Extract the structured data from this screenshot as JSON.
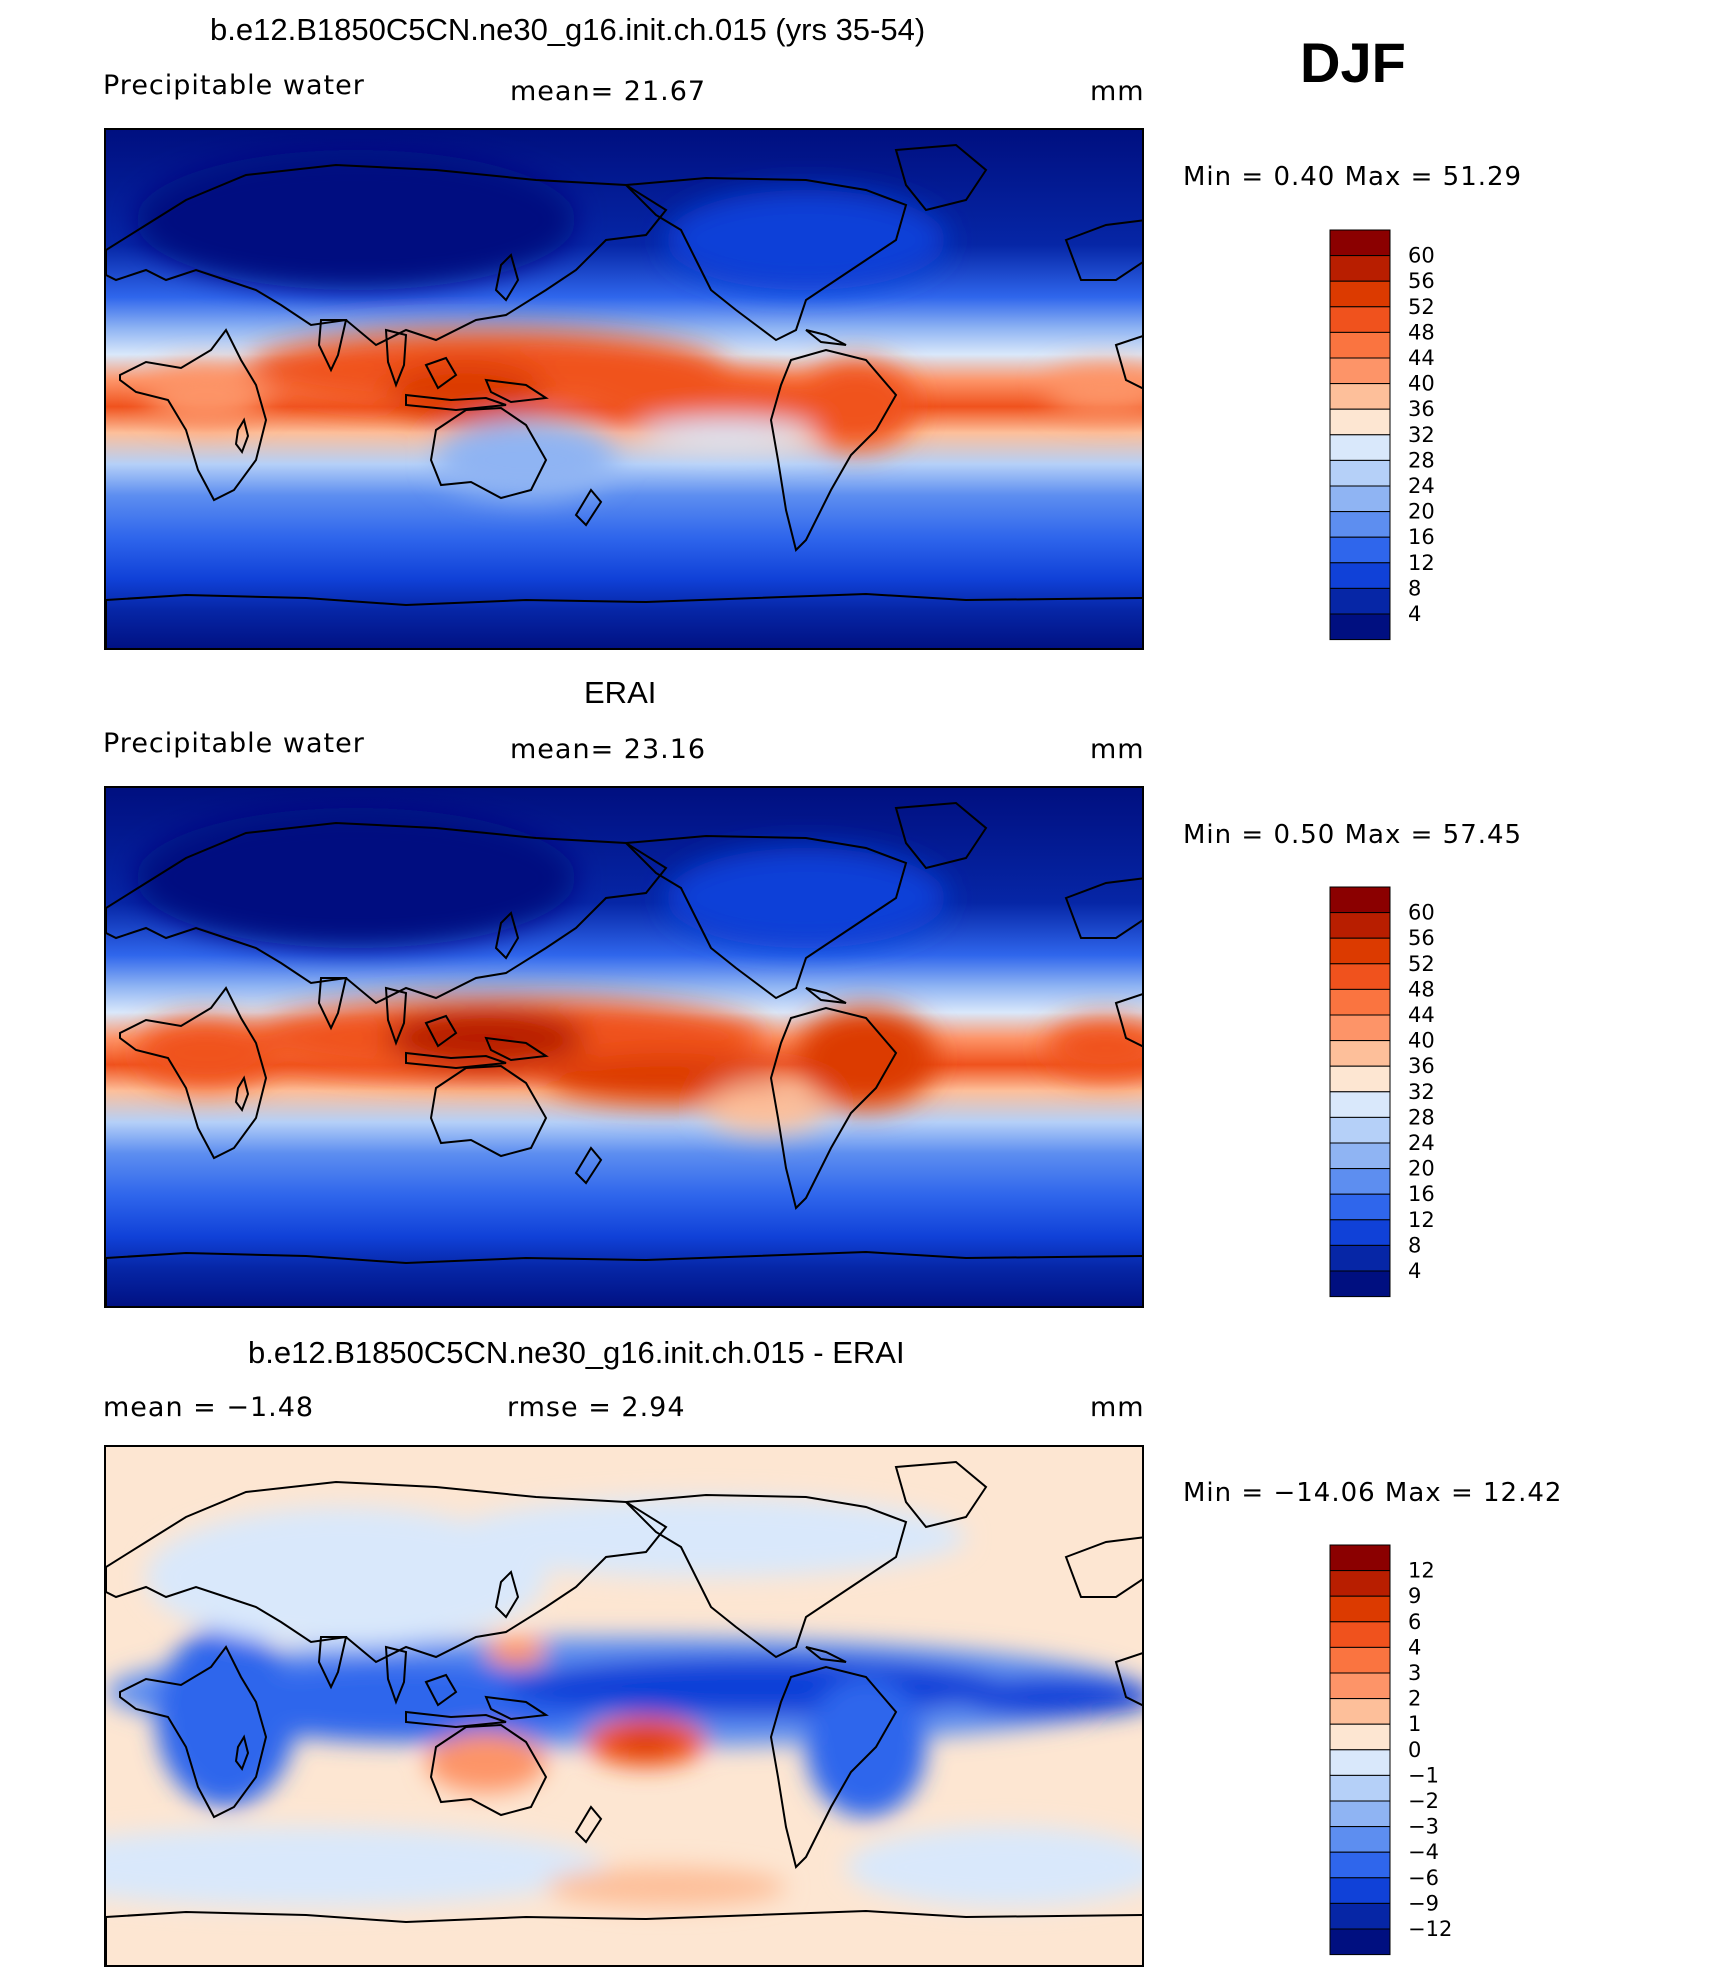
{
  "season": "DJF",
  "panels": [
    {
      "id": "model",
      "title": "b.e12.B1850C5CN.ne30_g16.init.ch.015 (yrs 35-54)",
      "variable": "Precipitable water",
      "stat_text": "mean=   21.67",
      "stat2_text": "",
      "units": "mm",
      "minmax": "Min =    0.40 Max =   51.29",
      "colorbar_labels": [
        "60",
        "56",
        "52",
        "48",
        "44",
        "40",
        "36",
        "32",
        "28",
        "24",
        "20",
        "16",
        "12",
        "8",
        "4"
      ]
    },
    {
      "id": "obs",
      "title": "ERAI",
      "variable": "Precipitable water",
      "stat_text": "mean=   23.16",
      "stat2_text": "",
      "units": "mm",
      "minmax": "Min =    0.50 Max =   57.45",
      "colorbar_labels": [
        "60",
        "56",
        "52",
        "48",
        "44",
        "40",
        "36",
        "32",
        "28",
        "24",
        "20",
        "16",
        "12",
        "8",
        "4"
      ]
    },
    {
      "id": "diff",
      "title": "b.e12.B1850C5CN.ne30_g16.init.ch.015 - ERAI",
      "variable": "mean =   −1.48",
      "stat_text": "rmse =    2.94",
      "stat2_text": "",
      "units": "mm",
      "minmax": "Min = −14.06 Max =   12.42",
      "colorbar_labels": [
        "12",
        "9",
        "6",
        "4",
        "3",
        "2",
        "1",
        "0",
        "−1",
        "−2",
        "−3",
        "−4",
        "−6",
        "−9",
        "−12"
      ]
    }
  ],
  "colors": {
    "pw_scale": [
      "#8b0000",
      "#b81e00",
      "#dc3a00",
      "#f0521d",
      "#fa7440",
      "#fd9468",
      "#fdbf9a",
      "#fde6d2",
      "#d9e8fb",
      "#b5d0f8",
      "#8fb4f3",
      "#5d8ef0",
      "#2f66ec",
      "#1041d8",
      "#0626a6",
      "#000f80"
    ],
    "diff_scale": [
      "#8b0000",
      "#b81e00",
      "#dc3a00",
      "#f0521d",
      "#fa7440",
      "#fd9468",
      "#fdbf9a",
      "#fde6d2",
      "#d9e8fb",
      "#b5d0f8",
      "#8fb4f3",
      "#5d8ef0",
      "#2f66ec",
      "#1041d8",
      "#0626a6",
      "#000f80"
    ],
    "coast": "#000000"
  }
}
